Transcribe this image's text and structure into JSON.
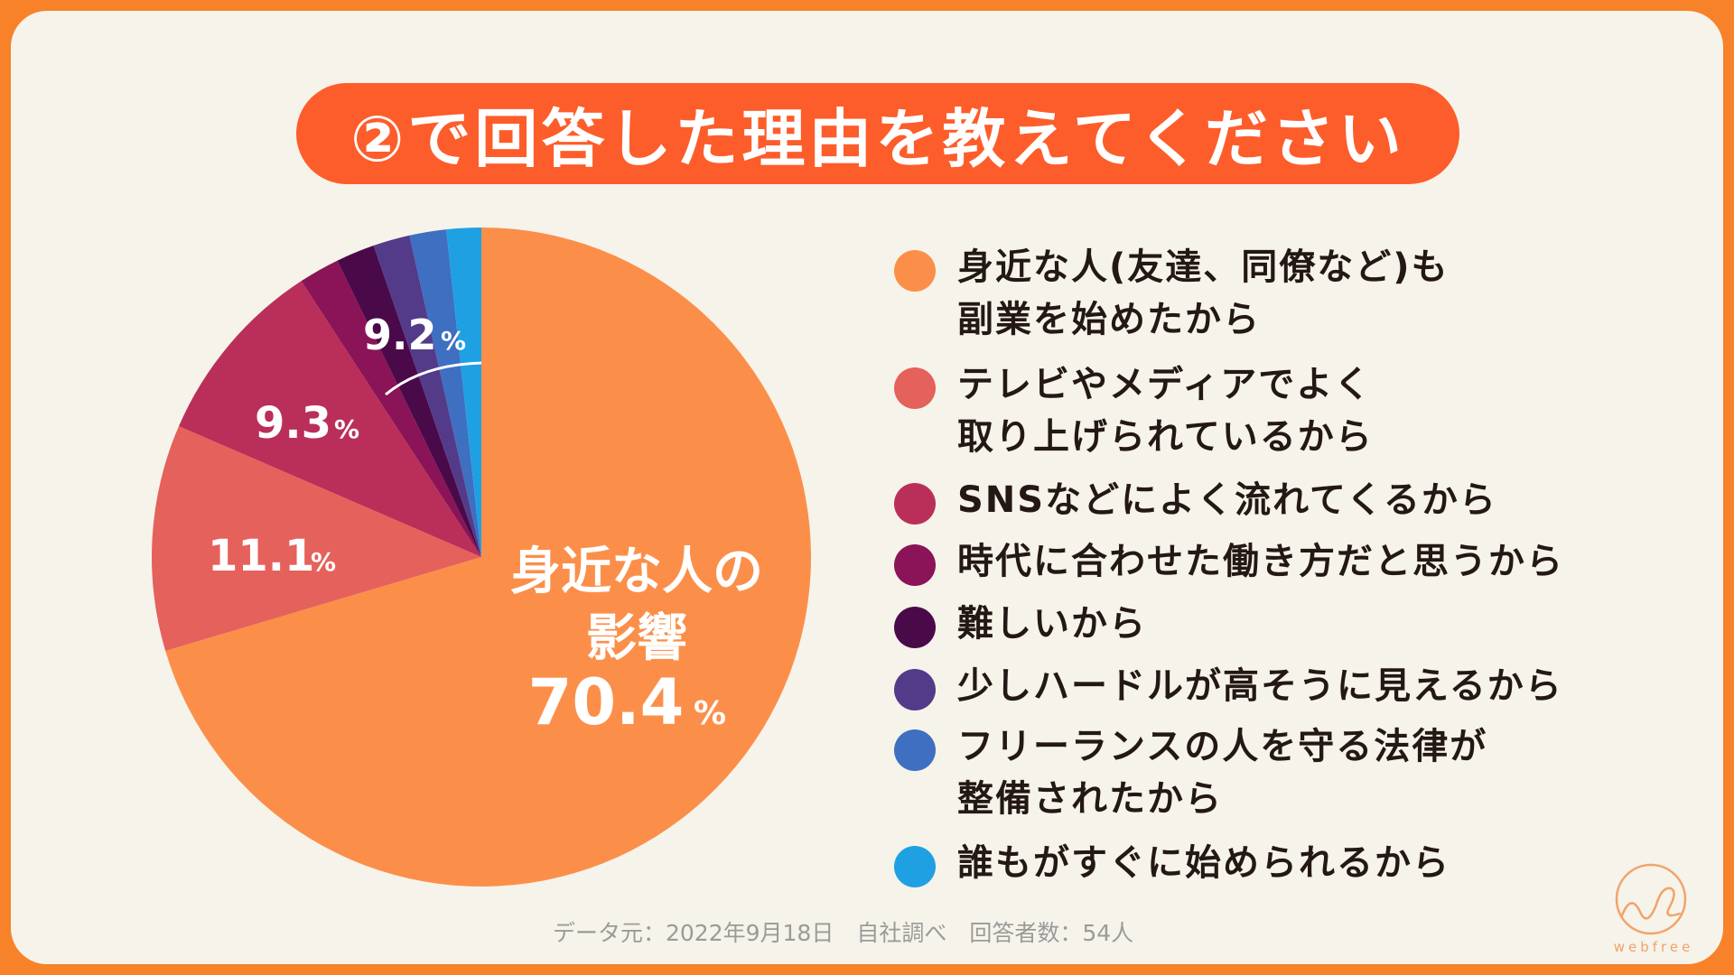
{
  "title": "②で回答した理由を教えてください",
  "chart_data": {
    "type": "pie",
    "slices": [
      {
        "label": "身近な人(友達、同僚など)も副業を始めたから",
        "value": 70.4,
        "color": "#fb8f4a"
      },
      {
        "label": "テレビやメディアでよく取り上げられているから",
        "value": 11.1,
        "color": "#e5615b"
      },
      {
        "label": "SNSなどによく流れてくるから",
        "value": 9.3,
        "color": "#ba2f59"
      },
      {
        "label": "時代に合わせた働き方だと思うから",
        "value": 2.0,
        "color": "#8a1457"
      },
      {
        "label": "難しいから",
        "value": 1.9,
        "color": "#4a0a4a"
      },
      {
        "label": "少しハードルが高そうに見えるから",
        "value": 1.8,
        "color": "#533b8a"
      },
      {
        "label": "フリーランスの人を守る法律が整備されたから",
        "value": 1.8,
        "color": "#3e6fc1"
      },
      {
        "label": "誰もがすぐに始められるから",
        "value": 1.7,
        "color": "#1fa0e3"
      }
    ],
    "annotations": {
      "main_label_line1": "身近な人の",
      "main_label_line2": "影響",
      "main_value": "70.4",
      "second_value": "11.1",
      "third_value": "9.3",
      "others_value": "9.2",
      "percent_sign": "%"
    }
  },
  "legend": [
    {
      "lines": [
        "身近な人(友達、同僚など)も",
        "副業を始めたから"
      ],
      "color": "#fb8f4a"
    },
    {
      "lines": [
        "テレビやメディアでよく",
        "取り上げられているから"
      ],
      "color": "#e5615b"
    },
    {
      "lines": [
        "SNSなどによく流れてくるから"
      ],
      "color": "#ba2f59"
    },
    {
      "lines": [
        "時代に合わせた働き方だと思うから"
      ],
      "color": "#8a1457"
    },
    {
      "lines": [
        "難しいから"
      ],
      "color": "#4a0a4a"
    },
    {
      "lines": [
        "少しハードルが高そうに見えるから"
      ],
      "color": "#533b8a"
    },
    {
      "lines": [
        "フリーランスの人を守る法律が",
        "整備されたから"
      ],
      "color": "#3e6fc1"
    },
    {
      "lines": [
        "誰もがすぐに始められるから"
      ],
      "color": "#1fa0e3"
    }
  ],
  "source": "データ元：2022年9月18日　自社調べ　回答者数：54人",
  "logo_text": "webfree"
}
